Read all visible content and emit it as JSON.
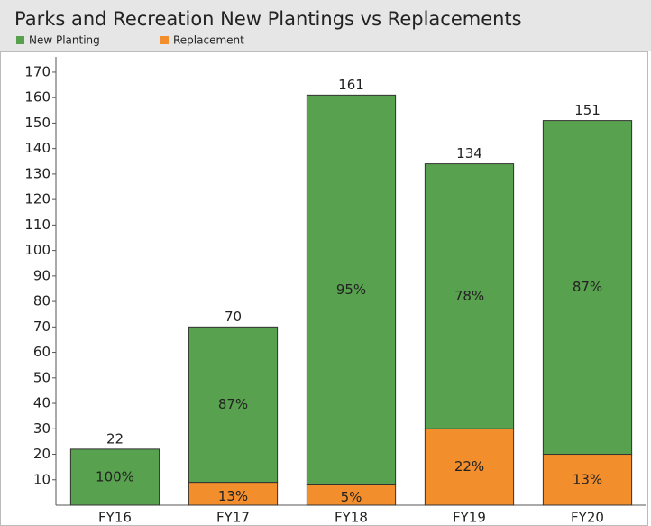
{
  "chart_data": {
    "type": "stacked_bar",
    "title": "Parks and Recreation New Plantings vs Replacements",
    "categories": [
      "FY16",
      "FY17",
      "FY18",
      "FY19",
      "FY20"
    ],
    "series": [
      {
        "name": "New Planting",
        "color": "#58a14e",
        "values": [
          22,
          61,
          153,
          104,
          131
        ],
        "value_labels": [
          "100%",
          "87%",
          "95%",
          "78%",
          "87%"
        ]
      },
      {
        "name": "Replacement",
        "color": "#f28e2b",
        "values": [
          0,
          9,
          8,
          30,
          20
        ],
        "value_labels": [
          null,
          "13%",
          "5%",
          "22%",
          "13%"
        ]
      }
    ],
    "totals": [
      22,
      70,
      161,
      134,
      151
    ],
    "ylim": [
      0,
      176
    ],
    "yticks": [
      10,
      20,
      30,
      40,
      50,
      60,
      70,
      80,
      90,
      100,
      110,
      120,
      130,
      140,
      150,
      160,
      170
    ],
    "grid": false,
    "legend": "top-left"
  }
}
